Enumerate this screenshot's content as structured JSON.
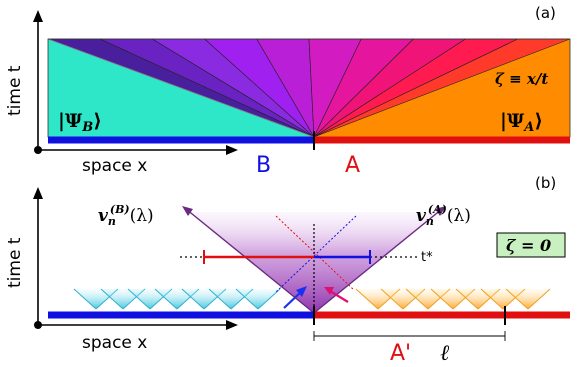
{
  "panel_a": {
    "label": "(a)",
    "time_axis_label": "time t",
    "space_axis_label": "space x",
    "state_b": "|Ψ",
    "state_b_sub": "B",
    "state_b_close": "⟩",
    "state_a": "|Ψ",
    "state_a_sub": "A",
    "state_a_close": "⟩",
    "ray_def": "ζ ≡ x/t",
    "region_b": "B",
    "region_a": "A",
    "color_b": "#1010e0",
    "color_a": "#e01010",
    "fill_b": "#2ee6c8",
    "fill_a": "#ff8c00",
    "fan_colors": [
      "#4a1f9e",
      "#6a22c2",
      "#8a2be2",
      "#a020f0",
      "#b81fd6",
      "#d21bc0",
      "#e6159e",
      "#f01478",
      "#ff1a4f",
      "#ff3a2a"
    ]
  },
  "panel_b": {
    "label": "(b)",
    "time_axis_label": "time t",
    "space_axis_label": "space x",
    "mode_b": "v",
    "mode_b_sub": "n",
    "mode_b_sup": "(B)",
    "mode_b_arg": "(λ)",
    "mode_a": "v",
    "mode_a_sub": "n",
    "mode_a_sup": "(A)",
    "mode_a_arg": "(λ)",
    "time_marker": "t*",
    "ray_badge": "ζ = 0",
    "subsystem_label": "A'",
    "length_label": "ℓ",
    "badge_fill": "#c8f0c0",
    "cone_fill": "#a040c0",
    "quasi_b": "#40c8e0",
    "quasi_a": "#ffb020"
  }
}
